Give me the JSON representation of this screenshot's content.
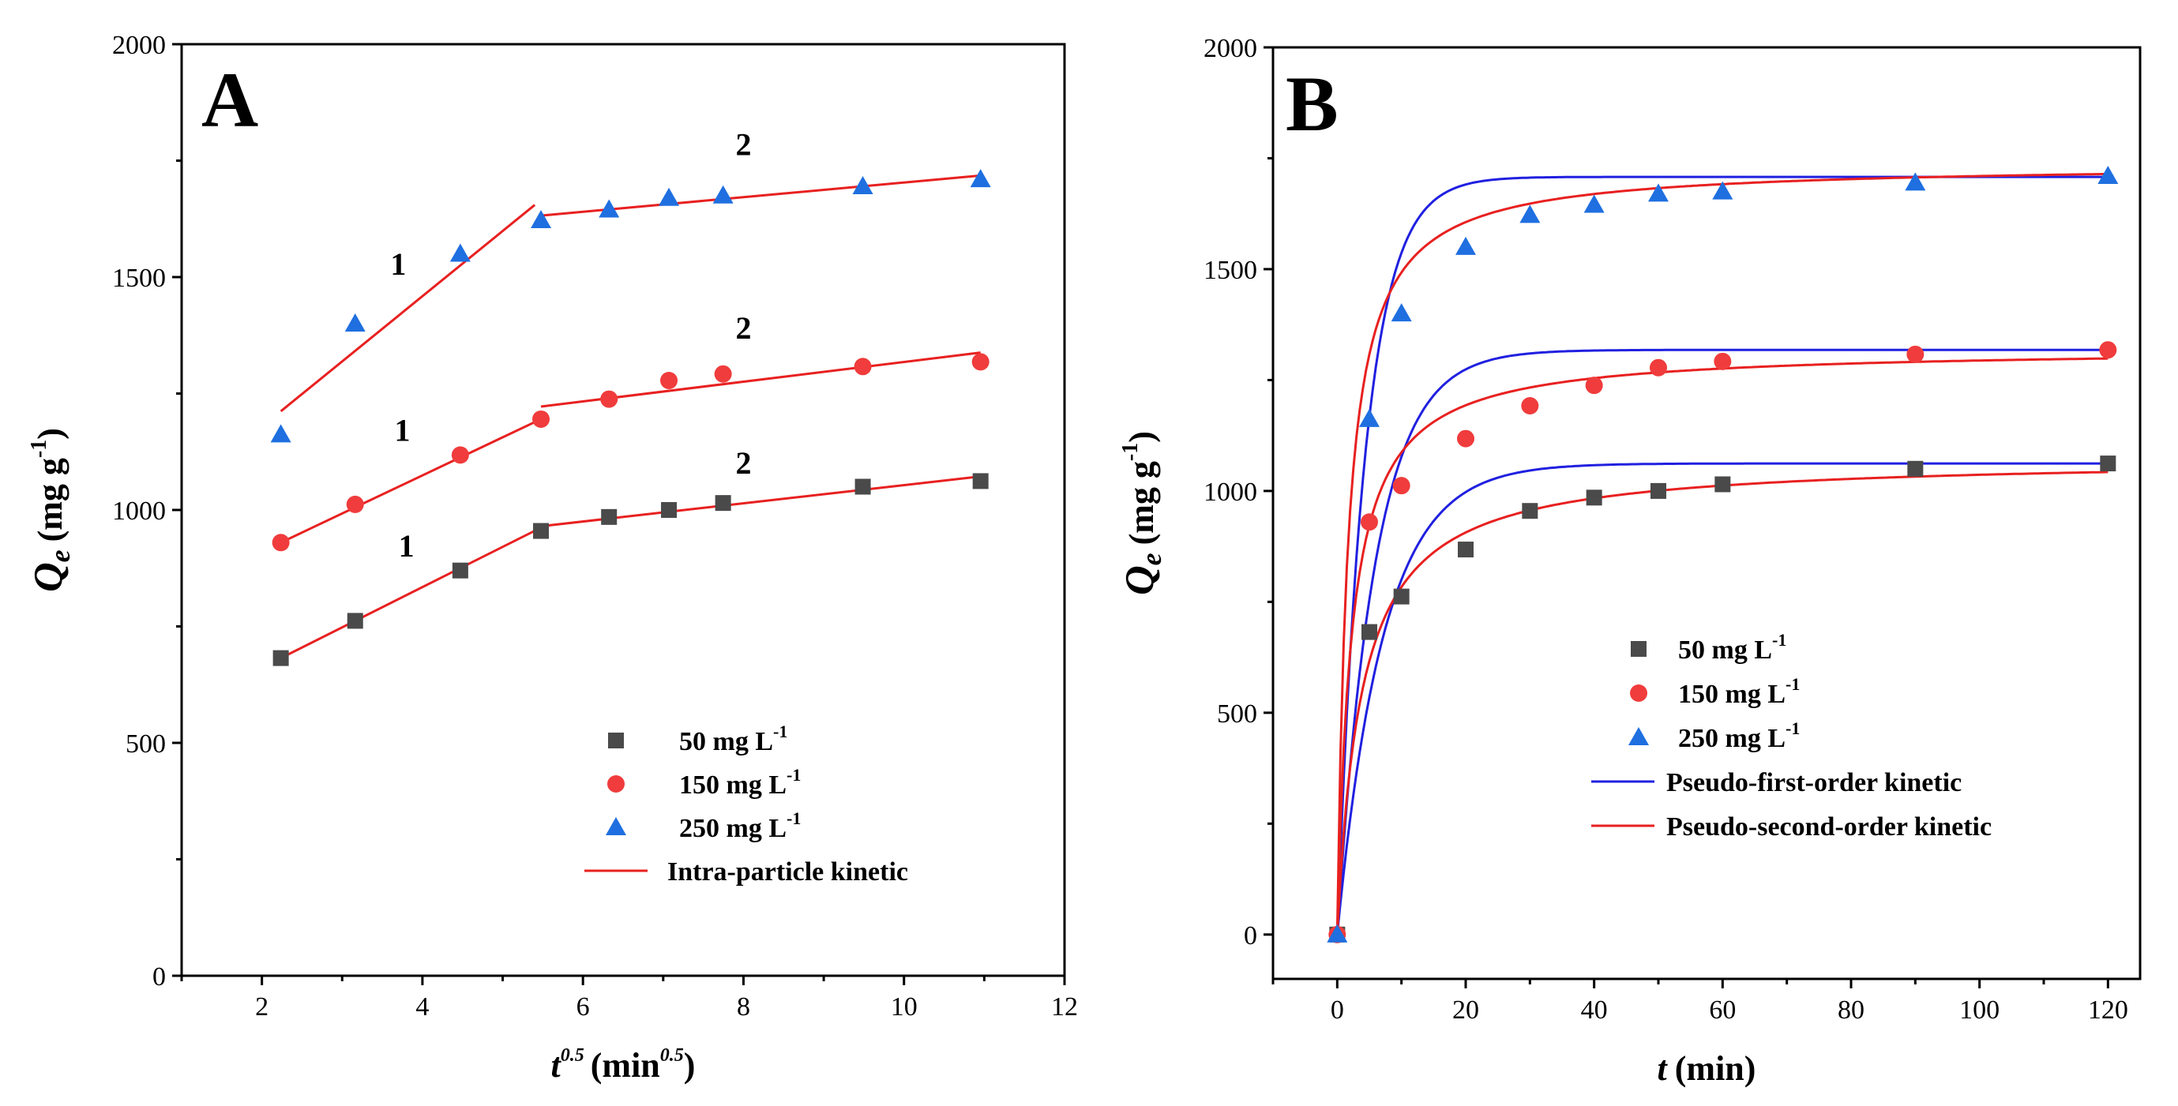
{
  "chart_data": [
    {
      "panel": "A",
      "type": "scatter",
      "xlabel_main": "t",
      "xlabel_sup": "0.5",
      "xlabel_unit": "(min",
      "xlabel_unit_sup": "0.5",
      "xlabel_close": ")",
      "ylabel_main": "Q",
      "ylabel_sub": "e",
      "ylabel_unit": "(mg g",
      "ylabel_unit_sup": "-1",
      "ylabel_close": ")",
      "xlim": [
        1,
        12
      ],
      "ylim": [
        0,
        2000
      ],
      "xticks": [
        2,
        4,
        6,
        8,
        10,
        12
      ],
      "yticks": [
        0,
        500,
        1000,
        1500,
        2000
      ],
      "series": [
        {
          "name": "50 mg L-1",
          "label": "50 mg L",
          "label_sup": "-1",
          "marker": "square",
          "color": "#4a4a4a",
          "x": [
            2.236,
            3.162,
            4.472,
            5.477,
            6.325,
            7.071,
            7.746,
            9.487,
            10.954
          ],
          "y": [
            682,
            762,
            870,
            955,
            985,
            1000,
            1015,
            1050,
            1062
          ]
        },
        {
          "name": "150 mg L-1",
          "label": "150 mg L",
          "label_sup": "-1",
          "marker": "circle",
          "color": "#f03c3c",
          "x": [
            2.236,
            3.162,
            4.472,
            5.477,
            6.325,
            7.071,
            7.746,
            9.487,
            10.954
          ],
          "y": [
            930,
            1012,
            1118,
            1195,
            1238,
            1278,
            1292,
            1308,
            1318
          ]
        },
        {
          "name": "250 mg L-1",
          "label": "250 mg L",
          "label_sup": "-1",
          "marker": "triangle",
          "color": "#1f6fe0",
          "x": [
            2.236,
            3.162,
            4.472,
            5.477,
            6.325,
            7.071,
            7.746,
            9.487,
            10.954
          ],
          "y": [
            1162,
            1400,
            1550,
            1622,
            1645,
            1670,
            1675,
            1695,
            1710
          ]
        }
      ],
      "fit_lines": [
        {
          "color": "#e82020",
          "x": [
            2.236,
            5.4
          ],
          "y": [
            1212,
            1655
          ]
        },
        {
          "color": "#e82020",
          "x": [
            5.477,
            10.954
          ],
          "y": [
            1632,
            1718
          ]
        },
        {
          "color": "#e82020",
          "x": [
            2.236,
            5.477
          ],
          "y": [
            930,
            1195
          ]
        },
        {
          "color": "#e82020",
          "x": [
            5.477,
            10.954
          ],
          "y": [
            1222,
            1338
          ]
        },
        {
          "color": "#e82020",
          "x": [
            2.236,
            5.477
          ],
          "y": [
            682,
            962
          ]
        },
        {
          "color": "#e82020",
          "x": [
            5.477,
            10.954
          ],
          "y": [
            965,
            1072
          ]
        }
      ],
      "annotations": [
        {
          "text": "1",
          "x": 3.7,
          "y": 1505
        },
        {
          "text": "2",
          "x": 8.0,
          "y": 1762
        },
        {
          "text": "1",
          "x": 3.75,
          "y": 1148
        },
        {
          "text": "2",
          "x": 8.0,
          "y": 1368
        },
        {
          "text": "1",
          "x": 3.8,
          "y": 900
        },
        {
          "text": "2",
          "x": 8.0,
          "y": 1078
        }
      ],
      "legend": {
        "position": "lower-right",
        "items": [
          {
            "marker": "square",
            "color": "#4a4a4a",
            "label": "50 mg L",
            "sup": "-1"
          },
          {
            "marker": "circle",
            "color": "#f03c3c",
            "label": "150 mg L",
            "sup": "-1"
          },
          {
            "marker": "triangle",
            "color": "#1f6fe0",
            "label": "250 mg L",
            "sup": "-1"
          },
          {
            "marker": "line",
            "color": "#e82020",
            "label": "Intra-particle kinetic",
            "sup": ""
          }
        ]
      }
    },
    {
      "panel": "B",
      "type": "scatter",
      "xlabel_main": "t",
      "xlabel_unit": "(min)",
      "ylabel_main": "Q",
      "ylabel_sub": "e",
      "ylabel_unit": "(mg g",
      "ylabel_unit_sup": "-1",
      "ylabel_close": ")",
      "xlim": [
        -10,
        125
      ],
      "ylim": [
        -100,
        2000
      ],
      "xticks": [
        0,
        20,
        40,
        60,
        80,
        100,
        120
      ],
      "yticks": [
        0,
        500,
        1000,
        1500,
        2000
      ],
      "series": [
        {
          "name": "50 mg L-1",
          "label": "50 mg L",
          "label_sup": "-1",
          "marker": "square",
          "color": "#4a4a4a",
          "x": [
            0,
            5,
            10,
            20,
            30,
            40,
            50,
            60,
            90,
            120
          ],
          "y": [
            0,
            682,
            762,
            868,
            955,
            985,
            1000,
            1015,
            1050,
            1062
          ]
        },
        {
          "name": "150 mg L-1",
          "label": "150 mg L",
          "label_sup": "-1",
          "marker": "circle",
          "color": "#f03c3c",
          "x": [
            0,
            5,
            10,
            20,
            30,
            40,
            50,
            60,
            90,
            120
          ],
          "y": [
            0,
            930,
            1012,
            1118,
            1192,
            1238,
            1278,
            1292,
            1308,
            1318
          ]
        },
        {
          "name": "250 mg L-1",
          "label": "250 mg L",
          "label_sup": "-1",
          "marker": "triangle",
          "color": "#1f6fe0",
          "x": [
            0,
            5,
            10,
            20,
            30,
            40,
            50,
            60,
            90,
            120
          ],
          "y": [
            0,
            1162,
            1400,
            1550,
            1622,
            1645,
            1670,
            1675,
            1695,
            1710
          ]
        }
      ],
      "models": {
        "pseudo_first_order": {
          "color": "#2020e0",
          "curves": [
            {
              "qe": 1062,
              "k1": 0.14
            },
            {
              "qe": 1318,
              "k1": 0.17
            },
            {
              "qe": 1708,
              "k1": 0.23
            }
          ]
        },
        "pseudo_second_order": {
          "color": "#e82020",
          "curves": [
            {
              "qe": 1075,
              "k2": 0.00025
            },
            {
              "qe": 1322,
              "k2": 0.00035
            },
            {
              "qe": 1738,
              "k2": 0.00035
            }
          ]
        }
      },
      "legend": {
        "position": "center-right",
        "items": [
          {
            "marker": "square",
            "color": "#4a4a4a",
            "label": "50 mg L",
            "sup": "-1"
          },
          {
            "marker": "circle",
            "color": "#f03c3c",
            "label": "150 mg L",
            "sup": "-1"
          },
          {
            "marker": "triangle",
            "color": "#1f6fe0",
            "label": "250 mg L",
            "sup": "-1"
          },
          {
            "marker": "line",
            "color": "#2020e0",
            "label": "Pseudo-first-order kinetic",
            "sup": ""
          },
          {
            "marker": "line",
            "color": "#e82020",
            "label": "Pseudo-second-order kinetic",
            "sup": ""
          }
        ]
      }
    }
  ]
}
